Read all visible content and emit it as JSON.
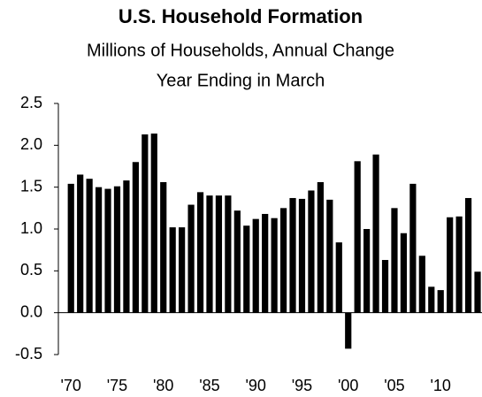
{
  "chart_data": {
    "type": "bar",
    "title": "U.S. Household Formation",
    "subtitle": [
      "Millions of Households, Annual Change",
      "Year Ending in March"
    ],
    "categories": [
      "'70",
      null,
      null,
      null,
      null,
      "'75",
      null,
      null,
      null,
      null,
      "'80",
      null,
      null,
      null,
      null,
      "'85",
      null,
      null,
      null,
      null,
      "'90",
      null,
      null,
      null,
      null,
      "'95",
      null,
      null,
      null,
      null,
      "'00",
      null,
      null,
      null,
      null,
      "'05",
      null,
      null,
      null,
      null,
      "'10",
      null,
      null,
      null,
      null
    ],
    "values": [
      1.54,
      1.65,
      1.6,
      1.5,
      1.48,
      1.51,
      1.58,
      1.8,
      2.13,
      2.14,
      1.56,
      1.02,
      1.02,
      1.29,
      1.44,
      1.4,
      1.4,
      1.4,
      1.22,
      1.04,
      1.12,
      1.18,
      1.13,
      1.25,
      1.37,
      1.36,
      1.46,
      1.56,
      1.35,
      0.84,
      -0.43,
      1.81,
      1.0,
      1.89,
      0.63,
      1.25,
      0.95,
      1.54,
      0.68,
      0.31,
      0.27,
      1.14,
      1.15,
      1.37,
      0.49
    ],
    "color": "#000000",
    "ylim": [
      -0.5,
      2.5
    ],
    "yticks": [
      -0.5,
      {
        "value": 0,
        "label": "0.0"
      },
      0.5,
      {
        "value": 1,
        "label": "1.0"
      },
      1.5,
      {
        "value": 2,
        "label": "2.0"
      },
      2.5
    ],
    "grid": false
  }
}
